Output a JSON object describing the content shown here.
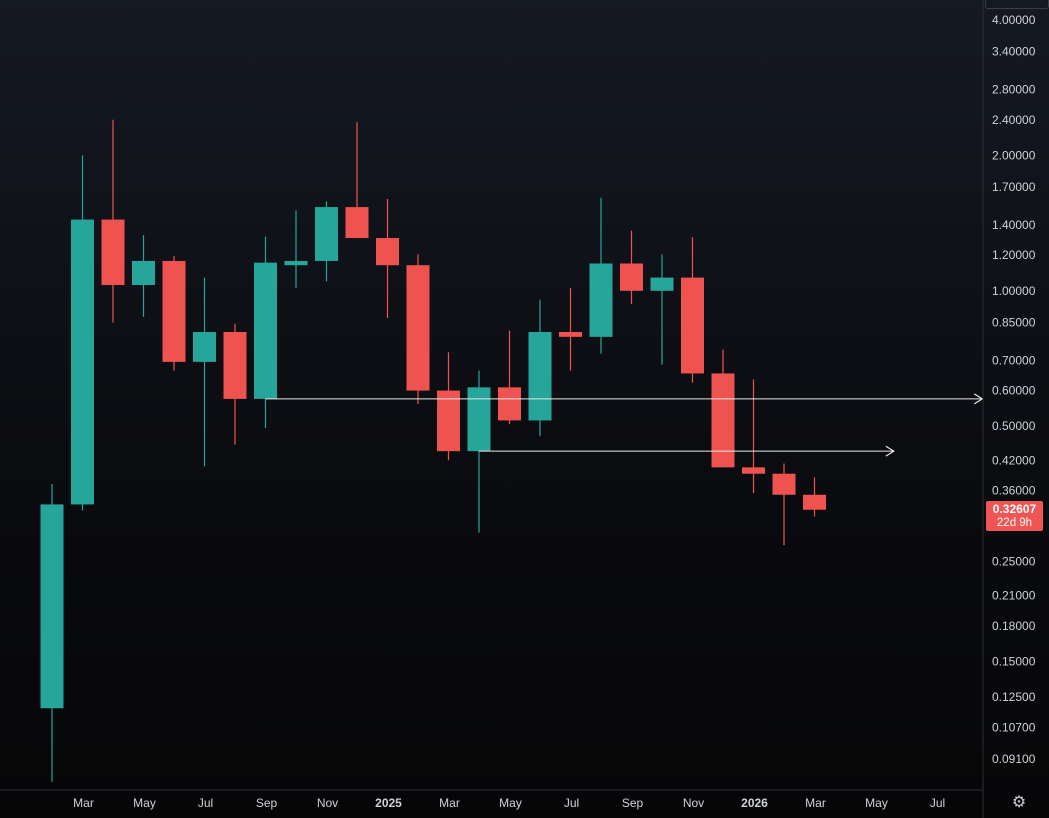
{
  "chart_data": {
    "type": "candlestick",
    "title": "",
    "xlabel": "",
    "ylabel": "",
    "y_scale": "log",
    "ylim": [
      0.08,
      4.2
    ],
    "grid": false,
    "colors": {
      "up": "#26a69a",
      "down": "#ef5350",
      "line": "#e8e8e8",
      "label_bg": "#ef5350"
    },
    "y_ticks": [
      "4.00000",
      "3.40000",
      "2.80000",
      "2.40000",
      "2.00000",
      "1.70000",
      "1.40000",
      "1.20000",
      "1.00000",
      "0.85000",
      "0.70000",
      "0.60000",
      "0.50000",
      "0.42000",
      "0.36000",
      "0.25000",
      "0.21000",
      "0.18000",
      "0.15000",
      "0.12500",
      "0.10700",
      "0.09100"
    ],
    "x_ticks": [
      {
        "label": "Mar",
        "at": 1
      },
      {
        "label": "May",
        "at": 3
      },
      {
        "label": "Jul",
        "at": 5
      },
      {
        "label": "Sep",
        "at": 7
      },
      {
        "label": "Nov",
        "at": 9
      },
      {
        "label": "2025",
        "at": 11
      },
      {
        "label": "Mar",
        "at": 13
      },
      {
        "label": "May",
        "at": 15
      },
      {
        "label": "Jul",
        "at": 17
      },
      {
        "label": "Sep",
        "at": 19
      },
      {
        "label": "Nov",
        "at": 21
      },
      {
        "label": "2026",
        "at": 23
      },
      {
        "label": "Mar",
        "at": 25
      },
      {
        "label": "May",
        "at": 27
      },
      {
        "label": "Jul",
        "at": 29
      }
    ],
    "candles": [
      {
        "i": 0,
        "o": 0.118,
        "h": 0.372,
        "l": 0.081,
        "c": 0.335
      },
      {
        "i": 1,
        "o": 0.335,
        "h": 2.0,
        "l": 0.325,
        "c": 1.44
      },
      {
        "i": 2,
        "o": 1.44,
        "h": 2.4,
        "l": 0.85,
        "c": 1.03
      },
      {
        "i": 3,
        "o": 1.03,
        "h": 1.33,
        "l": 0.875,
        "c": 1.165
      },
      {
        "i": 4,
        "o": 1.165,
        "h": 1.195,
        "l": 0.665,
        "c": 0.695
      },
      {
        "i": 5,
        "o": 0.695,
        "h": 1.07,
        "l": 0.407,
        "c": 0.81
      },
      {
        "i": 6,
        "o": 0.81,
        "h": 0.845,
        "l": 0.455,
        "c": 0.575
      },
      {
        "i": 7,
        "o": 0.575,
        "h": 1.32,
        "l": 0.495,
        "c": 1.155
      },
      {
        "i": 8,
        "o": 1.14,
        "h": 1.51,
        "l": 1.015,
        "c": 1.165
      },
      {
        "i": 9,
        "o": 1.165,
        "h": 1.58,
        "l": 1.05,
        "c": 1.535
      },
      {
        "i": 10,
        "o": 1.535,
        "h": 2.37,
        "l": 1.31,
        "c": 1.31
      },
      {
        "i": 11,
        "o": 1.31,
        "h": 1.6,
        "l": 0.87,
        "c": 1.14
      },
      {
        "i": 12,
        "o": 1.14,
        "h": 1.205,
        "l": 0.56,
        "c": 0.6
      },
      {
        "i": 13,
        "o": 0.6,
        "h": 0.73,
        "l": 0.42,
        "c": 0.44
      },
      {
        "i": 14,
        "o": 0.44,
        "h": 0.665,
        "l": 0.29,
        "c": 0.61
      },
      {
        "i": 15,
        "o": 0.61,
        "h": 0.815,
        "l": 0.505,
        "c": 0.515
      },
      {
        "i": 16,
        "o": 0.515,
        "h": 0.955,
        "l": 0.475,
        "c": 0.81
      },
      {
        "i": 17,
        "o": 0.81,
        "h": 1.015,
        "l": 0.665,
        "c": 0.79
      },
      {
        "i": 18,
        "o": 0.79,
        "h": 1.61,
        "l": 0.725,
        "c": 1.15
      },
      {
        "i": 19,
        "o": 1.15,
        "h": 1.36,
        "l": 0.935,
        "c": 1.0
      },
      {
        "i": 20,
        "o": 1.0,
        "h": 1.205,
        "l": 0.685,
        "c": 1.07
      },
      {
        "i": 21,
        "o": 1.07,
        "h": 1.315,
        "l": 0.625,
        "c": 0.655
      },
      {
        "i": 22,
        "o": 0.655,
        "h": 0.74,
        "l": 0.405,
        "c": 0.405
      },
      {
        "i": 23,
        "o": 0.405,
        "h": 0.635,
        "l": 0.355,
        "c": 0.392
      },
      {
        "i": 24,
        "o": 0.392,
        "h": 0.413,
        "l": 0.272,
        "c": 0.352
      },
      {
        "i": 25,
        "o": 0.352,
        "h": 0.385,
        "l": 0.315,
        "c": 0.326
      }
    ],
    "hlines": [
      {
        "price": 0.575,
        "from": 7,
        "to": 30.5
      },
      {
        "price": 0.44,
        "from": 14,
        "to": 27.6
      }
    ],
    "last_price": {
      "value": "0.32607",
      "countdown": "22d 9h"
    }
  },
  "ui": {
    "settings_icon": "gear-icon"
  }
}
